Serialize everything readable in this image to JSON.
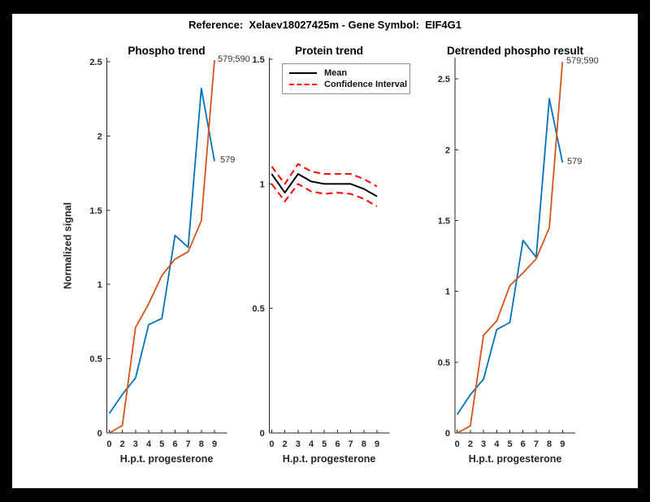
{
  "figure": {
    "title": "Reference:  Xelaev18027425m - Gene Symbol:  EIF4G1",
    "background_color": "#000000",
    "canvas_color": "#ffffff"
  },
  "colors": {
    "series_blue": "#0072BD",
    "series_orange": "#D95319",
    "ci_red": "#ff0000",
    "mean_black": "#000000",
    "axis": "#262626"
  },
  "legend": {
    "position": "top-left-of-protein-trend",
    "items": [
      {
        "label": "Mean",
        "color": "#000000",
        "style": "solid"
      },
      {
        "label": "Confidence Interval",
        "color": "#ff0000",
        "style": "dashed"
      }
    ]
  },
  "chart_data": [
    {
      "type": "line",
      "title": "Phospho trend",
      "xlabel": "H.p.t. progesterone",
      "ylabel": "Normalized signal",
      "categories": [
        "0",
        "2",
        "3",
        "4",
        "5",
        "6",
        "7",
        "8",
        "9"
      ],
      "ylim": [
        0,
        2.53
      ],
      "yticks": [
        0,
        0.5,
        1,
        1.5,
        2,
        2.5
      ],
      "grid": false,
      "series": [
        {
          "name": "579",
          "color": "#0072BD",
          "values": [
            0.13,
            0.26,
            0.37,
            0.73,
            0.77,
            1.33,
            1.25,
            2.32,
            1.83
          ]
        },
        {
          "name": "579;590",
          "color": "#D95319",
          "values": [
            0.0,
            0.05,
            0.71,
            0.87,
            1.06,
            1.17,
            1.22,
            1.43,
            2.51
          ]
        }
      ]
    },
    {
      "type": "line",
      "title": "Protein trend",
      "xlabel": "H.p.t. progesterone",
      "categories": [
        "0",
        "2",
        "3",
        "4",
        "5",
        "6",
        "7",
        "8",
        "9"
      ],
      "ylim": [
        0,
        1.5
      ],
      "yticks": [
        0,
        0.5,
        1,
        1.5
      ],
      "grid": false,
      "series": [
        {
          "name": "Confidence Interval upper",
          "color": "#ff0000",
          "style": "dashed",
          "values": [
            1.07,
            1.0,
            1.08,
            1.05,
            1.04,
            1.04,
            1.04,
            1.02,
            0.99
          ]
        },
        {
          "name": "Confidence Interval lower",
          "color": "#ff0000",
          "style": "dashed",
          "values": [
            1.0,
            0.93,
            1.0,
            0.97,
            0.96,
            0.965,
            0.96,
            0.94,
            0.91
          ]
        },
        {
          "name": "Mean",
          "color": "#000000",
          "style": "solid",
          "values": [
            1.04,
            0.965,
            1.04,
            1.01,
            1.0,
            1.0,
            1.0,
            0.98,
            0.95
          ]
        }
      ]
    },
    {
      "type": "line",
      "title": "Detrended phospho result",
      "xlabel": "H.p.t. progesterone",
      "categories": [
        "0",
        "2",
        "3",
        "4",
        "5",
        "6",
        "7",
        "8",
        "9"
      ],
      "ylim": [
        0,
        2.65
      ],
      "yticks": [
        0,
        0.5,
        1,
        1.5,
        2,
        2.5
      ],
      "grid": false,
      "series": [
        {
          "name": "579",
          "color": "#0072BD",
          "values": [
            0.13,
            0.27,
            0.38,
            0.73,
            0.78,
            1.36,
            1.24,
            2.36,
            1.91
          ]
        },
        {
          "name": "579;590",
          "color": "#D95319",
          "values": [
            0.0,
            0.05,
            0.69,
            0.79,
            1.04,
            1.13,
            1.23,
            1.45,
            2.62
          ]
        }
      ]
    }
  ]
}
